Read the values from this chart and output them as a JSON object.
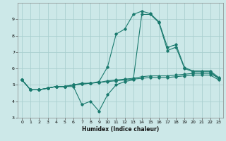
{
  "title": "",
  "xlabel": "Humidex (Indice chaleur)",
  "ylabel": "",
  "background_color": "#cce8e8",
  "grid_color": "#aacfcf",
  "line_color": "#1a7a6e",
  "xlim": [
    -0.5,
    23.5
  ],
  "ylim": [
    3,
    10
  ],
  "xticks": [
    0,
    1,
    2,
    3,
    4,
    5,
    6,
    7,
    8,
    9,
    10,
    11,
    12,
    13,
    14,
    15,
    16,
    17,
    18,
    19,
    20,
    21,
    22,
    23
  ],
  "yticks": [
    3,
    4,
    5,
    6,
    7,
    8,
    9
  ],
  "line1": {
    "x": [
      0,
      1,
      2,
      3,
      4,
      5,
      6,
      7,
      8,
      9,
      10,
      11,
      12,
      13,
      14,
      15,
      16,
      17,
      18,
      19,
      20,
      21,
      22,
      23
    ],
    "y": [
      5.3,
      4.7,
      4.7,
      4.8,
      4.9,
      4.9,
      4.9,
      3.8,
      4.0,
      3.4,
      4.4,
      5.0,
      5.2,
      5.3,
      9.3,
      9.3,
      8.8,
      7.1,
      7.3,
      6.0,
      5.8,
      5.8,
      5.8,
      5.4
    ]
  },
  "line2": {
    "x": [
      0,
      1,
      2,
      3,
      4,
      5,
      6,
      7,
      8,
      9,
      10,
      11,
      12,
      13,
      14,
      15,
      16,
      17,
      18,
      19,
      20,
      21,
      22,
      23
    ],
    "y": [
      5.3,
      4.7,
      4.7,
      4.8,
      4.9,
      4.9,
      5.0,
      5.05,
      5.1,
      5.15,
      5.2,
      5.25,
      5.3,
      5.35,
      5.4,
      5.45,
      5.45,
      5.45,
      5.5,
      5.55,
      5.6,
      5.6,
      5.6,
      5.3
    ]
  },
  "line3": {
    "x": [
      0,
      1,
      2,
      3,
      4,
      5,
      6,
      7,
      8,
      9,
      10,
      11,
      12,
      13,
      14,
      15,
      16,
      17,
      18,
      19,
      20,
      21,
      22,
      23
    ],
    "y": [
      5.3,
      4.7,
      4.7,
      4.8,
      4.9,
      4.9,
      5.0,
      5.05,
      5.1,
      5.15,
      5.25,
      5.3,
      5.35,
      5.4,
      5.5,
      5.55,
      5.55,
      5.55,
      5.6,
      5.65,
      5.7,
      5.7,
      5.7,
      5.4
    ]
  },
  "line4": {
    "x": [
      0,
      1,
      2,
      3,
      4,
      5,
      6,
      7,
      8,
      9,
      10,
      11,
      12,
      13,
      14,
      15,
      16,
      17,
      18,
      19,
      20,
      21,
      22,
      23
    ],
    "y": [
      5.3,
      4.7,
      4.7,
      4.8,
      4.9,
      4.9,
      5.0,
      5.1,
      5.1,
      5.2,
      6.1,
      8.1,
      8.4,
      9.3,
      9.5,
      9.35,
      8.85,
      7.3,
      7.45,
      6.05,
      5.85,
      5.85,
      5.85,
      5.45
    ]
  }
}
